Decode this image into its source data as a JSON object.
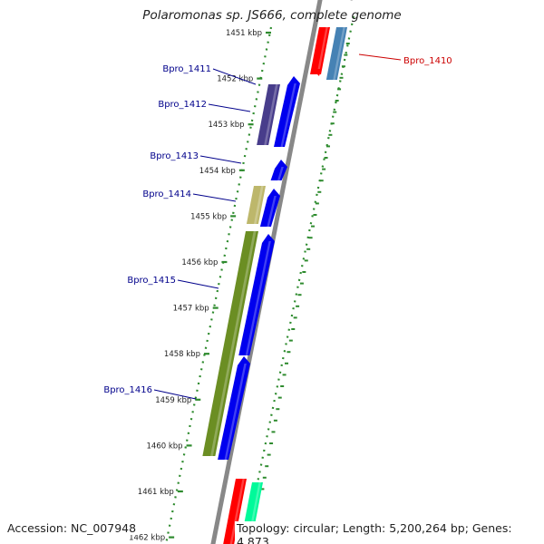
{
  "title": "Polaromonas sp. JS666, complete genome",
  "footer": {
    "accession": "Accession: NC_007948",
    "topology": "Topology: circular; Length: 5,200,264 bp; Genes: 4,873"
  },
  "ruler_ticks": [
    "1451 kbp",
    "1452 kbp",
    "1453 kbp",
    "1454 kbp",
    "1455 kbp",
    "1456 kbp",
    "1457 kbp",
    "1458 kbp",
    "1459 kbp",
    "1460 kbp",
    "1461 kbp",
    "1462 kbp"
  ],
  "gene_labels": [
    "Bpro_1410",
    "Bpro_1411",
    "Bpro_1412",
    "Bpro_1413",
    "Bpro_1414",
    "Bpro_1415",
    "Bpro_1416"
  ],
  "colors": {
    "backbone": "#888888",
    "ruler_dots": "#2e8b2e",
    "cds_forward": "#0000ee",
    "label_forward": "#00008b",
    "label_reverse": "#cc0000",
    "gene_1410": "#4682b4",
    "gene_1412": "#483d8b",
    "gene_1414": "#bdb76b",
    "gene_1416": "#6b8e23",
    "red_cds": "#ff0000",
    "teal_cds": "#00fa9a"
  }
}
